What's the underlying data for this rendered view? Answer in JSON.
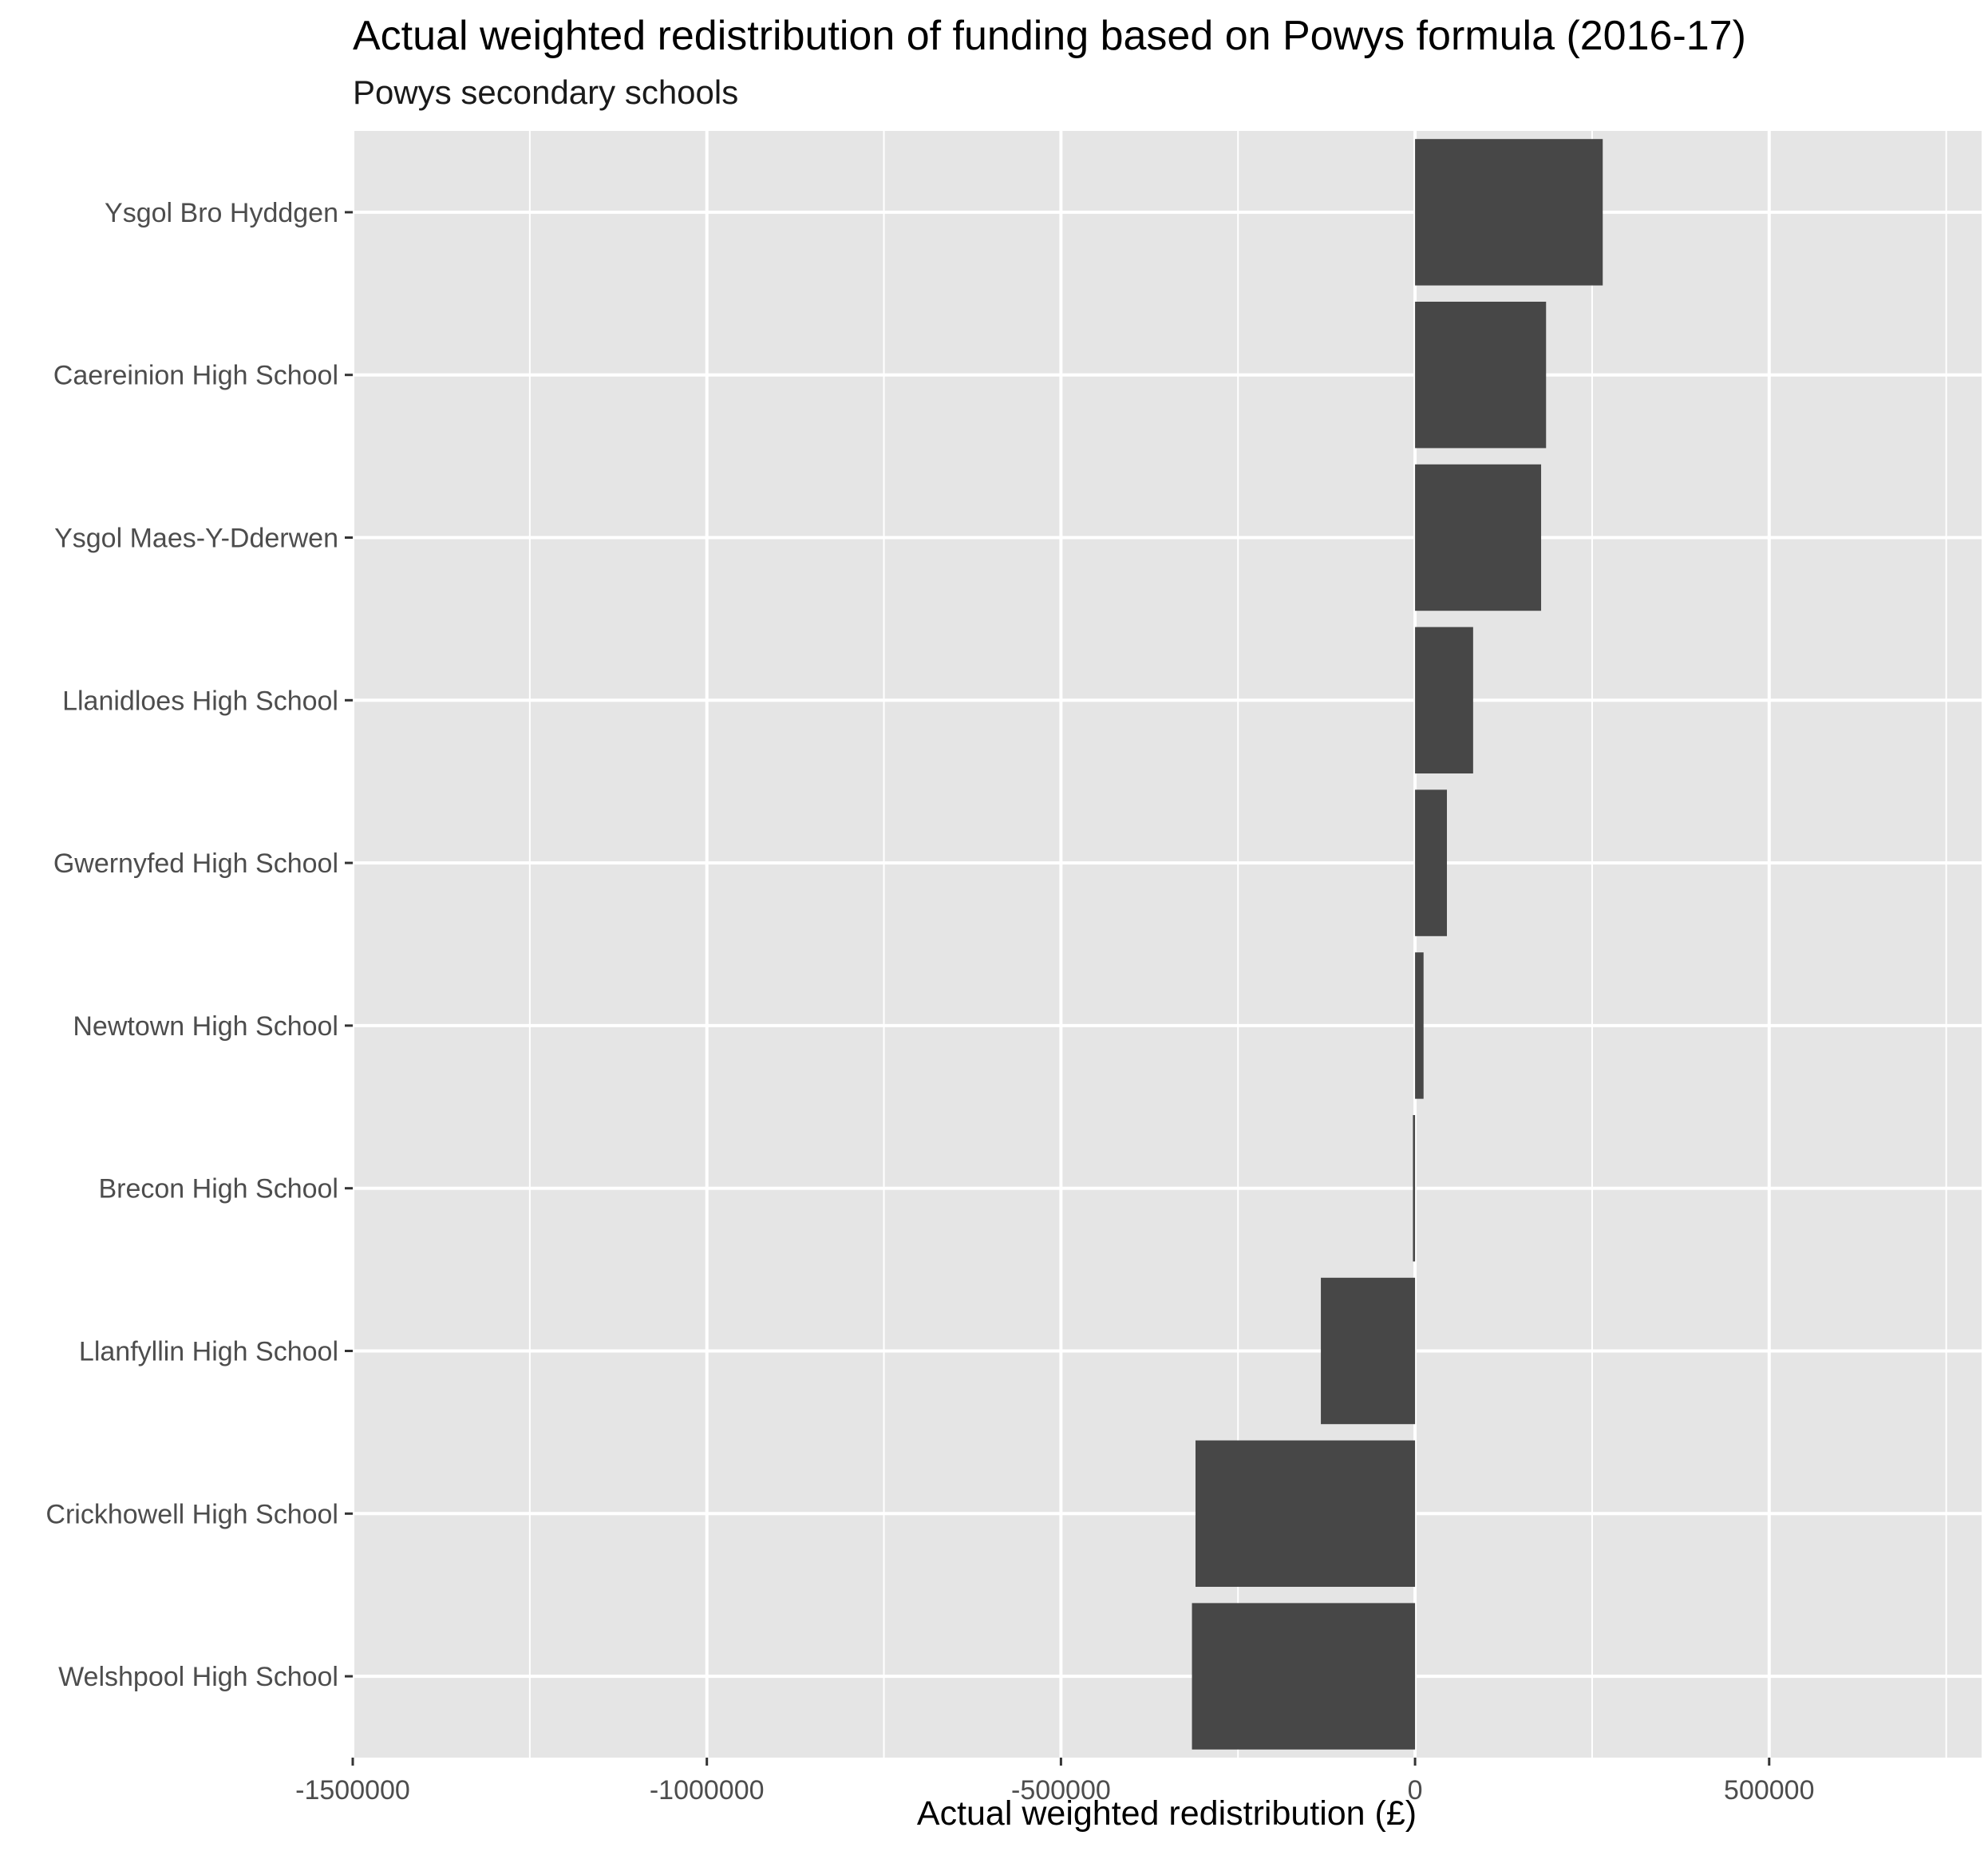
{
  "chart_data": {
    "type": "bar",
    "orientation": "horizontal",
    "title": "Actual weighted redistribution of funding based on Powys formula (2016-17)",
    "subtitle": "Powys secondary schools",
    "xlabel": "Actual weighted redistribution (£)",
    "ylabel": "",
    "xlim": [
      -1500000,
      800000
    ],
    "x_ticks": [
      -1500000,
      -1000000,
      -500000,
      0,
      500000
    ],
    "x_tick_labels": [
      "-1500000",
      "-1000000",
      "-500000",
      "0",
      "500000"
    ],
    "categories": [
      "Ysgol Bro Hyddgen",
      "Caereinion High School",
      "Ysgol Maes-Y-Dderwen",
      "Llanidloes High School",
      "Gwernyfed High School",
      "Newtown High School",
      "Brecon High School",
      "Llanfyllin High School",
      "Crickhowell High School",
      "Welshpool High School"
    ],
    "values": [
      265000,
      185000,
      178000,
      82000,
      45000,
      12000,
      -3000,
      -133000,
      -310000,
      -315000
    ],
    "bar_color": "#474747",
    "panel_color": "#e5e5e5",
    "grid": true,
    "legend": "none"
  }
}
